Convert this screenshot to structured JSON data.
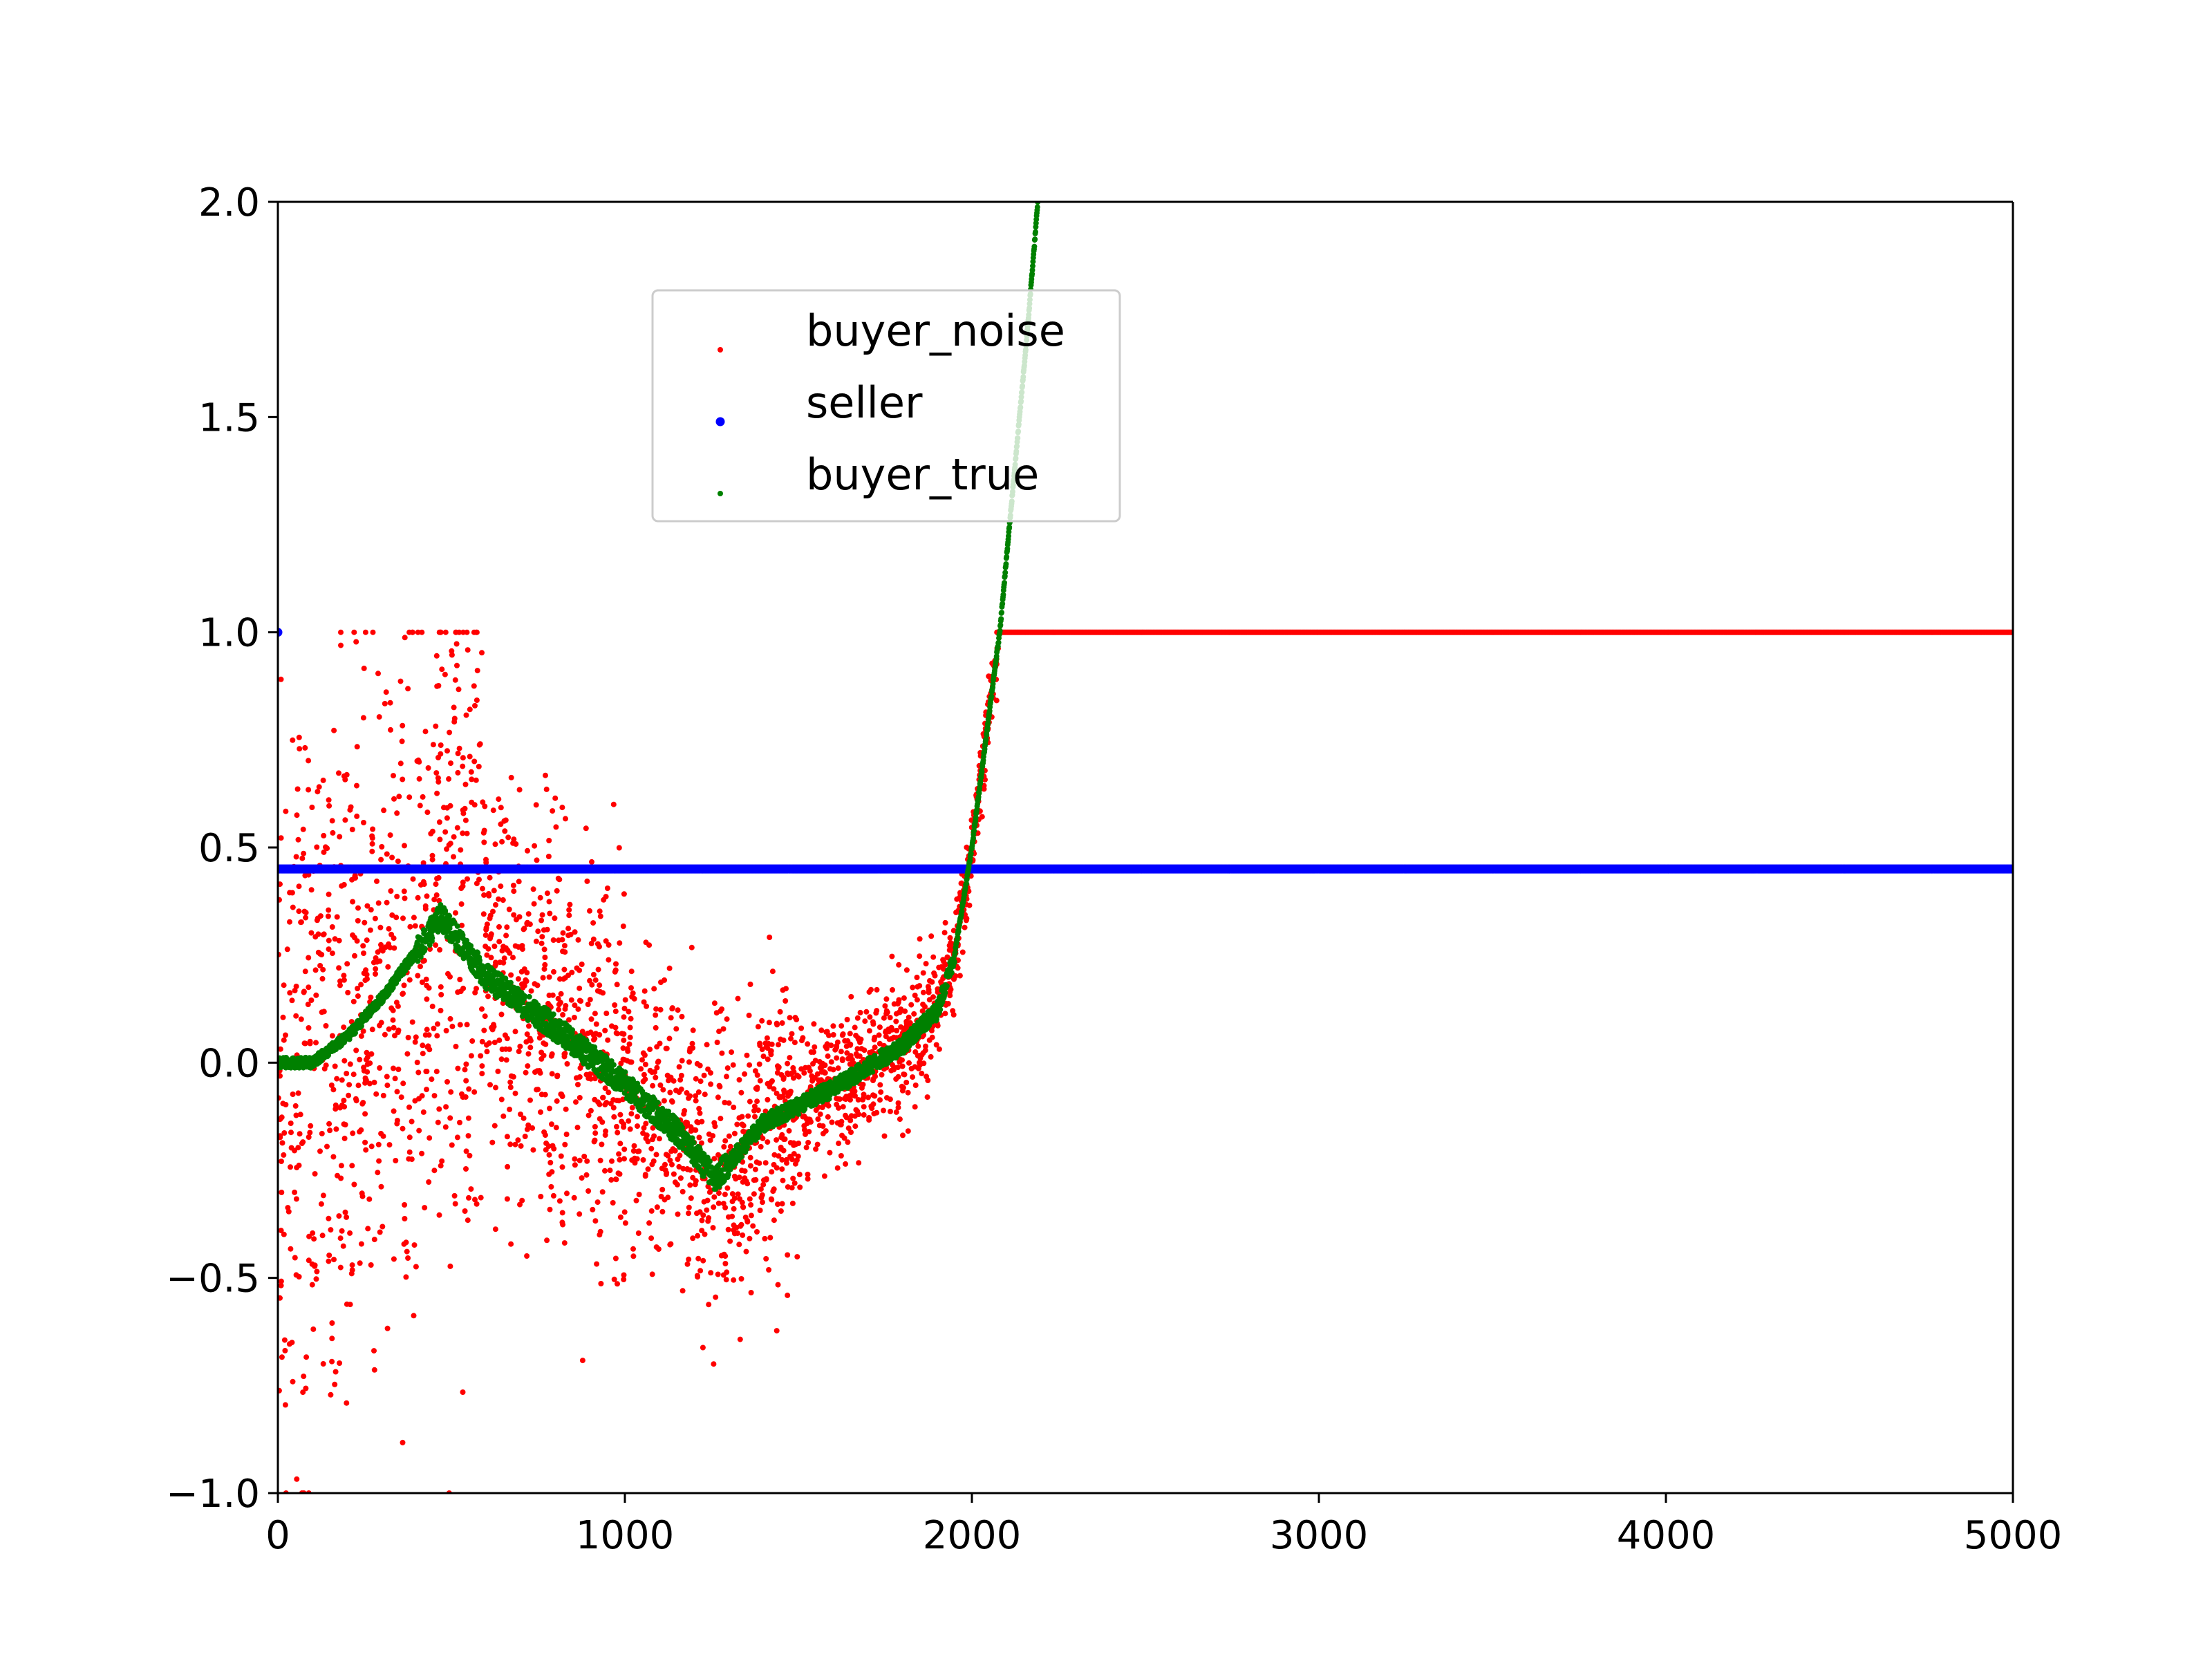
{
  "chart_data": {
    "type": "scatter",
    "title": "",
    "xlabel": "",
    "ylabel": "",
    "xlim": [
      0,
      5000
    ],
    "ylim": [
      -1.0,
      2.0
    ],
    "grid": false,
    "x_ticks": [
      0,
      1000,
      2000,
      3000,
      4000,
      5000
    ],
    "x_tick_labels": [
      "0",
      "1000",
      "2000",
      "3000",
      "4000",
      "5000"
    ],
    "y_ticks": [
      -1.0,
      -0.5,
      0.0,
      0.5,
      1.0,
      1.5,
      2.0
    ],
    "y_tick_labels": [
      "−1.0",
      "−0.5",
      "0.0",
      "0.5",
      "1.0",
      "1.5",
      "2.0"
    ],
    "legend": {
      "placement": "upper-center-left"
    },
    "series": [
      {
        "name": "buyer_noise",
        "label": "buyer_noise",
        "color": "#ff0000",
        "segments": [
          {
            "x_start": 2080,
            "x_end": 5000,
            "y": 1.0
          }
        ],
        "noise_regions": [
          {
            "x_min": 0,
            "x_max": 2080,
            "description": "noisy scatter around buyer_true, clipped to [-1, 1]"
          }
        ]
      },
      {
        "name": "seller",
        "label": "seller",
        "color": "#0000ff",
        "segments": [
          {
            "x_start": 0,
            "x_end": 5000,
            "y": 0.45
          }
        ],
        "points": [
          {
            "x": 0,
            "y": 1.0
          }
        ]
      },
      {
        "name": "buyer_true",
        "label": "buyer_true",
        "color": "#008000",
        "points": [
          {
            "x": 0,
            "y": 0.0
          },
          {
            "x": 100,
            "y": 0.0
          },
          {
            "x": 200,
            "y": 0.06
          },
          {
            "x": 300,
            "y": 0.15
          },
          {
            "x": 400,
            "y": 0.26
          },
          {
            "x": 470,
            "y": 0.34
          },
          {
            "x": 600,
            "y": 0.2
          },
          {
            "x": 800,
            "y": 0.08
          },
          {
            "x": 1000,
            "y": -0.05
          },
          {
            "x": 1150,
            "y": -0.16
          },
          {
            "x": 1260,
            "y": -0.27
          },
          {
            "x": 1400,
            "y": -0.14
          },
          {
            "x": 1600,
            "y": -0.06
          },
          {
            "x": 1800,
            "y": 0.04
          },
          {
            "x": 1900,
            "y": 0.12
          },
          {
            "x": 1950,
            "y": 0.25
          },
          {
            "x": 2000,
            "y": 0.5
          },
          {
            "x": 2040,
            "y": 0.75
          },
          {
            "x": 2080,
            "y": 1.0
          },
          {
            "x": 2120,
            "y": 1.35
          },
          {
            "x": 2160,
            "y": 1.7
          },
          {
            "x": 2190,
            "y": 2.0
          }
        ]
      }
    ]
  }
}
